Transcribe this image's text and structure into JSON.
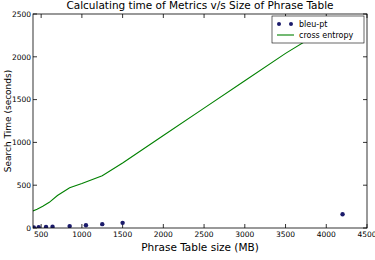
{
  "chart_data": {
    "type": "line",
    "title": "Calculating time of Metrics v/s Size of Phrase Table",
    "x_label": "Phrase Table size (MB)",
    "y_label": "Search Time (seconds)",
    "series": [
      {
        "name": "bleu-pt",
        "type": "scatter",
        "color": "#1b1b6b",
        "marker": "circle",
        "x": [
          410,
          470,
          560,
          640,
          850,
          1050,
          1250,
          1500,
          4200
        ],
        "values": [
          5,
          8,
          12,
          15,
          22,
          32,
          45,
          60,
          160
        ]
      },
      {
        "name": "cross entropy",
        "type": "line",
        "color": "#008000",
        "line_style": "solid",
        "x": [
          400,
          450,
          520,
          600,
          700,
          850,
          1000,
          1250,
          1500,
          2000,
          2500,
          3000,
          3500,
          4000,
          4200
        ],
        "values": [
          200,
          220,
          255,
          300,
          380,
          470,
          520,
          610,
          760,
          1080,
          1400,
          1720,
          2040,
          2330,
          2470
        ]
      }
    ],
    "xlim": [
      400,
      4500
    ],
    "ylim": [
      0,
      2500
    ],
    "xticks": [
      500,
      1000,
      1500,
      2000,
      2500,
      3000,
      3500,
      4000,
      4500
    ],
    "yticks": [
      0,
      500,
      1000,
      1500,
      2000,
      2500
    ],
    "legend": "upper right",
    "grid": false
  }
}
